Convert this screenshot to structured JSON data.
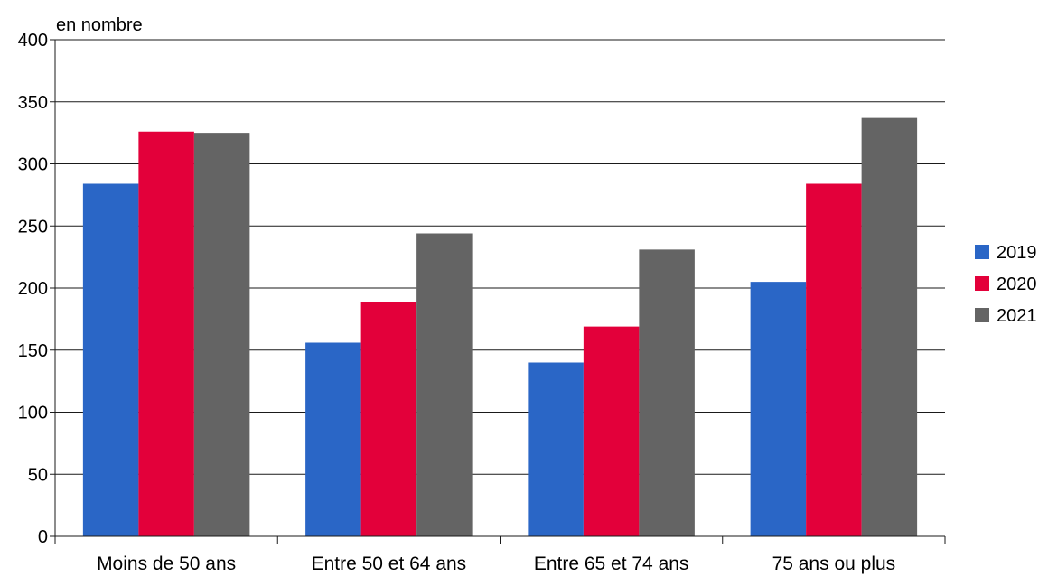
{
  "chart_data": {
    "type": "bar",
    "ylabel": "en nombre",
    "categories": [
      "Moins de 50 ans",
      "Entre 50 et 64 ans",
      "Entre 65 et 74 ans",
      "75 ans ou plus"
    ],
    "series": [
      {
        "name": "2019",
        "color": "#2a66c6",
        "values": [
          284,
          156,
          140,
          205
        ]
      },
      {
        "name": "2020",
        "color": "#e3003a",
        "values": [
          326,
          189,
          169,
          284
        ]
      },
      {
        "name": "2021",
        "color": "#646464",
        "values": [
          325,
          244,
          231,
          337
        ]
      }
    ],
    "ylim": [
      0,
      400
    ],
    "yticks": [
      0,
      50,
      100,
      150,
      200,
      250,
      300,
      350,
      400
    ],
    "grid": true,
    "legend_position": "right"
  }
}
